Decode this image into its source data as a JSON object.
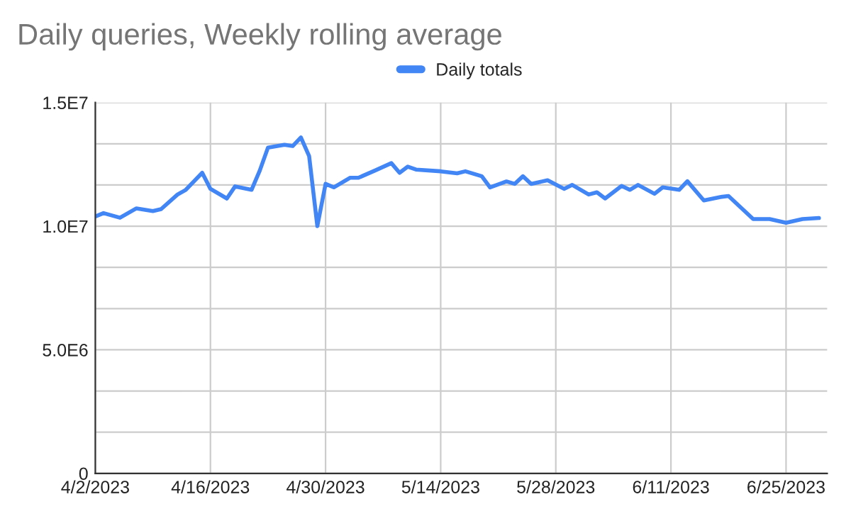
{
  "chart_data": {
    "type": "line",
    "title": "Daily queries, Weekly rolling average",
    "x": [
      "2023-04-02",
      "2023-04-03",
      "2023-04-05",
      "2023-04-07",
      "2023-04-09",
      "2023-04-10",
      "2023-04-12",
      "2023-04-13",
      "2023-04-15",
      "2023-04-16",
      "2023-04-18",
      "2023-04-19",
      "2023-04-21",
      "2023-04-22",
      "2023-04-23",
      "2023-04-25",
      "2023-04-26",
      "2023-04-27",
      "2023-04-28",
      "2023-04-29",
      "2023-04-30",
      "2023-05-01",
      "2023-05-03",
      "2023-05-04",
      "2023-05-06",
      "2023-05-08",
      "2023-05-09",
      "2023-05-10",
      "2023-05-11",
      "2023-05-14",
      "2023-05-16",
      "2023-05-17",
      "2023-05-19",
      "2023-05-20",
      "2023-05-22",
      "2023-05-23",
      "2023-05-24",
      "2023-05-25",
      "2023-05-27",
      "2023-05-29",
      "2023-05-30",
      "2023-06-01",
      "2023-06-02",
      "2023-06-03",
      "2023-06-05",
      "2023-06-06",
      "2023-06-07",
      "2023-06-09",
      "2023-06-10",
      "2023-06-12",
      "2023-06-13",
      "2023-06-15",
      "2023-06-17",
      "2023-06-18",
      "2023-06-21",
      "2023-06-23",
      "2023-06-25",
      "2023-06-27",
      "2023-06-29"
    ],
    "series": [
      {
        "name": "Daily totals",
        "color": "#4285f4",
        "values": [
          10390000,
          10530000,
          10340000,
          10720000,
          10610000,
          10690000,
          11280000,
          11470000,
          12160000,
          11510000,
          11120000,
          11610000,
          11470000,
          12250000,
          13180000,
          13290000,
          13240000,
          13590000,
          12840000,
          10000000,
          11710000,
          11570000,
          11960000,
          11960000,
          12250000,
          12550000,
          12160000,
          12410000,
          12290000,
          12220000,
          12140000,
          12220000,
          12020000,
          11570000,
          11810000,
          11710000,
          12020000,
          11710000,
          11860000,
          11510000,
          11670000,
          11280000,
          11370000,
          11120000,
          11630000,
          11470000,
          11670000,
          11310000,
          11570000,
          11470000,
          11820000,
          11040000,
          11180000,
          11220000,
          10290000,
          10290000,
          10140000,
          10290000,
          10330000
        ]
      }
    ],
    "xlim": [
      "2023-04-02",
      "2023-06-30"
    ],
    "xticks": [
      {
        "value": "2023-04-02",
        "label": "4/2/2023"
      },
      {
        "value": "2023-04-16",
        "label": "4/16/2023"
      },
      {
        "value": "2023-04-30",
        "label": "4/30/2023"
      },
      {
        "value": "2023-05-14",
        "label": "5/14/2023"
      },
      {
        "value": "2023-05-28",
        "label": "5/28/2023"
      },
      {
        "value": "2023-06-11",
        "label": "6/11/2023"
      },
      {
        "value": "2023-06-25",
        "label": "6/25/2023"
      }
    ],
    "ylim": [
      0,
      15000000
    ],
    "yticks": [
      0,
      {
        "value": 1666667,
        "label": null
      },
      {
        "value": 3333333,
        "label": null
      },
      {
        "value": 5000000,
        "label": "5.0E6"
      },
      {
        "value": 6666667,
        "label": null
      },
      {
        "value": 8333333,
        "label": null
      },
      {
        "value": 10000000,
        "label": "1.0E7"
      },
      {
        "value": 11666667,
        "label": null
      },
      {
        "value": 13333333,
        "label": null
      },
      {
        "value": 15000000,
        "label": "1.5E7"
      }
    ],
    "grid": true,
    "legend": "top",
    "marker": "none",
    "line_style": "solid"
  }
}
